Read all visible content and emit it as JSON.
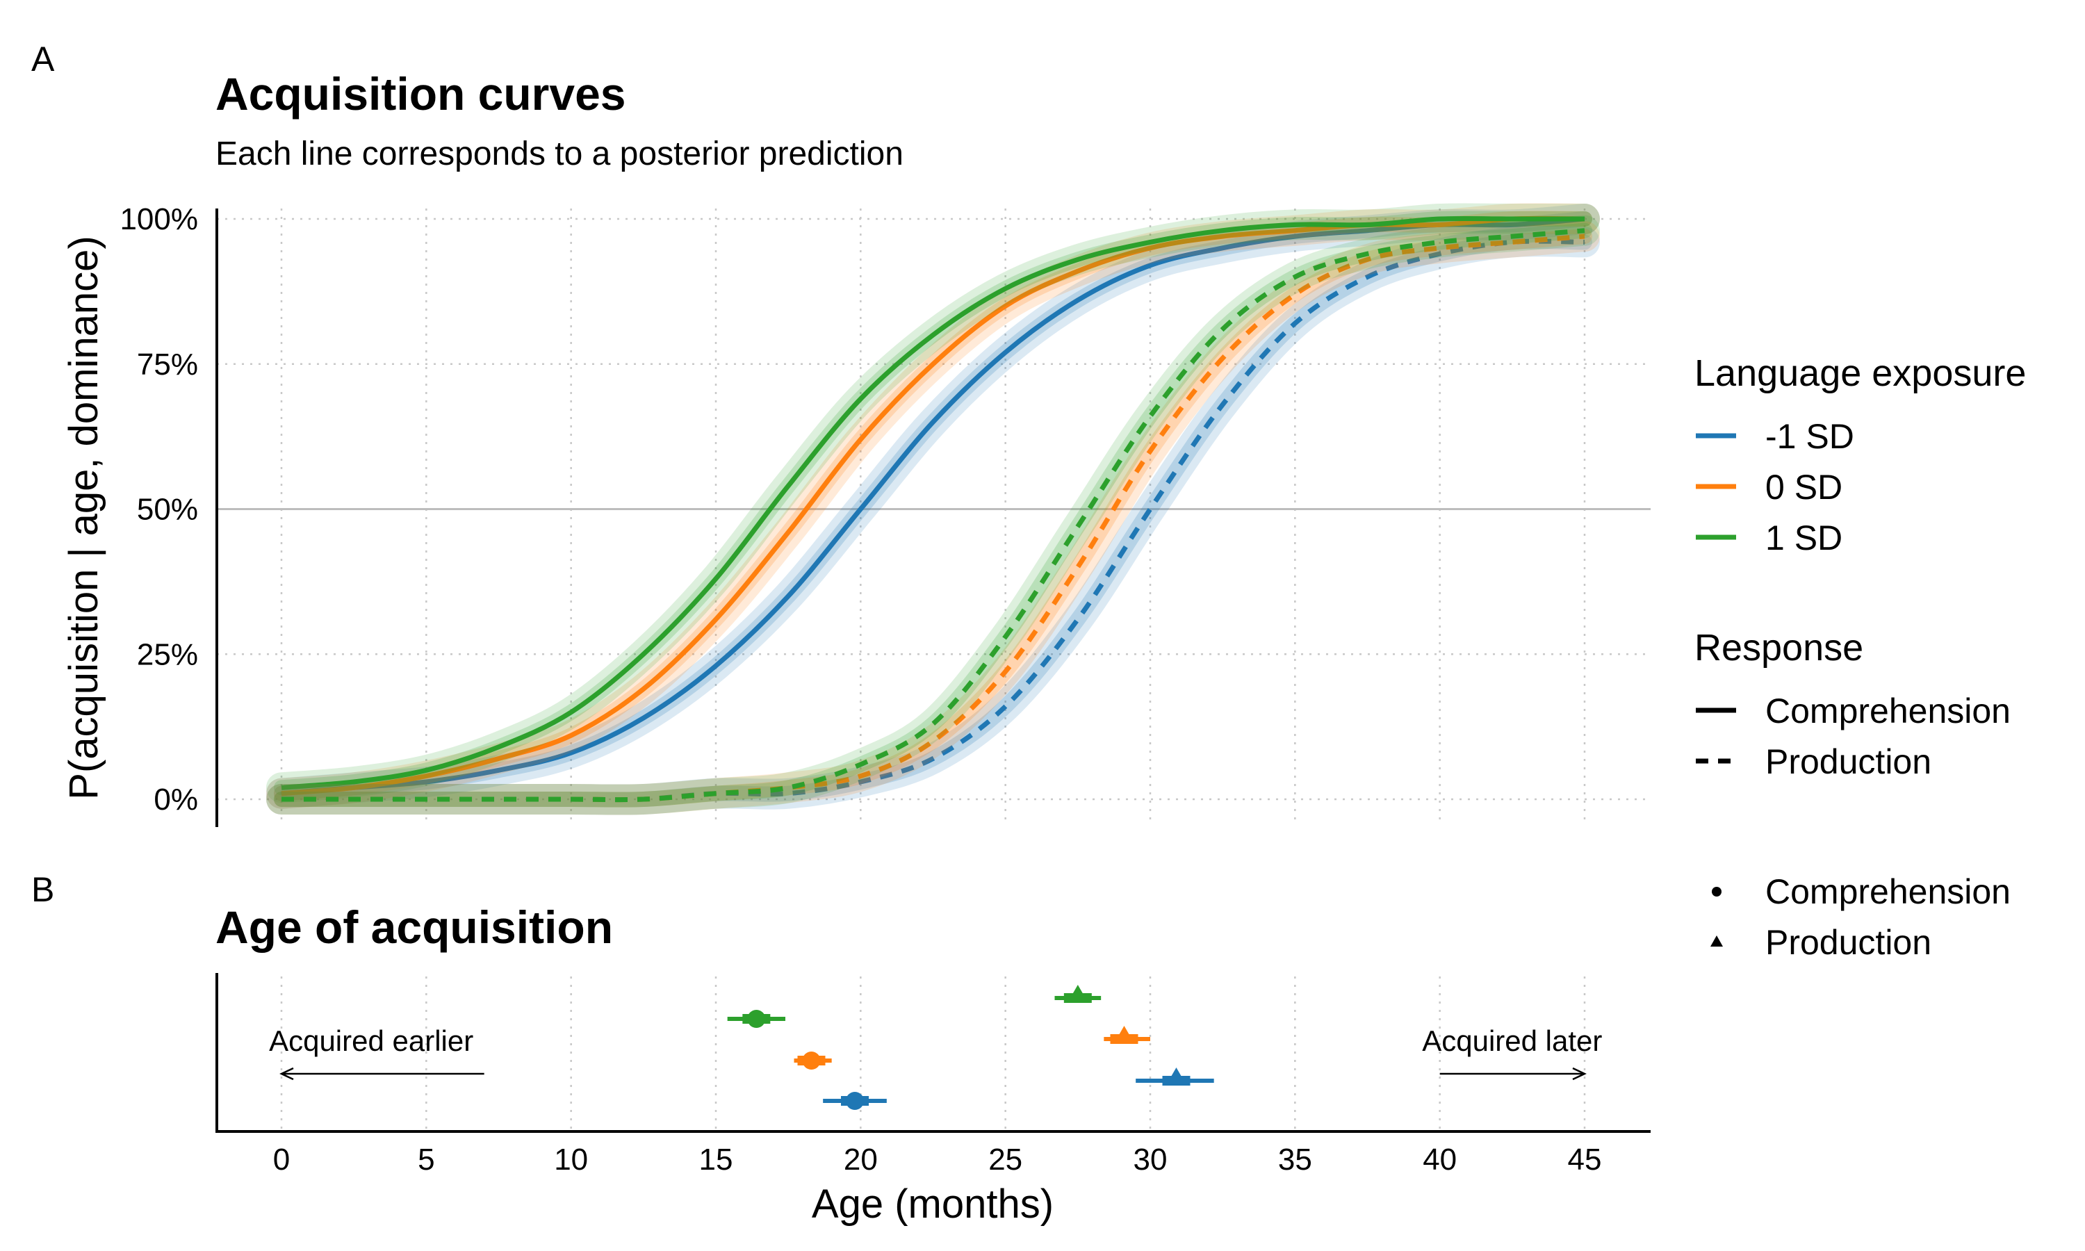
{
  "panels": {
    "a": {
      "tag": "A",
      "title": "Acquisition curves",
      "subtitle": "Each line corresponds to a posterior prediction",
      "ylabel": "P(acquisition | age, dominance)",
      "y_ticks": [
        "0%",
        "25%",
        "50%",
        "75%",
        "100%"
      ]
    },
    "b": {
      "tag": "B",
      "title": "Age of acquisition",
      "annotation_left": "Acquired earlier",
      "annotation_right": "Acquired later"
    },
    "xlabel": "Age (months)",
    "x_ticks": [
      "0",
      "5",
      "10",
      "15",
      "20",
      "25",
      "30",
      "35",
      "40",
      "45"
    ]
  },
  "legend": {
    "exposure_title": "Language exposure",
    "exposure_items": [
      "-1 SD",
      "0 SD",
      "1 SD"
    ],
    "response_title": "Response",
    "response_items": [
      "Comprehension",
      "Production"
    ],
    "shape_items": [
      "Comprehension",
      "Production"
    ]
  },
  "colors": {
    "-1 SD": "#1f77b4",
    "0 SD": "#ff7f0e",
    "1 SD": "#2ca02c"
  },
  "chart_data": [
    {
      "type": "line",
      "panel": "A",
      "title": "Acquisition curves",
      "subtitle": "Each line corresponds to a posterior prediction",
      "xlabel": "",
      "ylabel": "P(acquisition | age, dominance)",
      "xlim": [
        0,
        45
      ],
      "ylim": [
        0,
        1
      ],
      "x_ticks": [
        0,
        5,
        10,
        15,
        20,
        25,
        30,
        35,
        40,
        45
      ],
      "y_ticks": [
        0,
        0.25,
        0.5,
        0.75,
        1
      ],
      "reference_line_y": 0.5,
      "grid": "dotted",
      "legend_position": "right",
      "x": [
        0,
        2.5,
        5,
        7.5,
        10,
        12.5,
        15,
        17.5,
        20,
        22.5,
        25,
        27.5,
        30,
        32.5,
        35,
        37.5,
        40,
        42.5,
        45
      ],
      "series": [
        {
          "name": "-1 SD",
          "response": "Comprehension",
          "linestyle": "solid",
          "values": [
            0.01,
            0.02,
            0.03,
            0.05,
            0.08,
            0.14,
            0.23,
            0.35,
            0.5,
            0.65,
            0.77,
            0.86,
            0.92,
            0.95,
            0.97,
            0.98,
            0.99,
            0.99,
            1.0
          ]
        },
        {
          "name": "0 SD",
          "response": "Comprehension",
          "linestyle": "solid",
          "values": [
            0.01,
            0.02,
            0.04,
            0.07,
            0.11,
            0.19,
            0.31,
            0.46,
            0.62,
            0.75,
            0.85,
            0.91,
            0.95,
            0.97,
            0.98,
            0.99,
            0.99,
            1.0,
            1.0
          ]
        },
        {
          "name": "1 SD",
          "response": "Comprehension",
          "linestyle": "solid",
          "values": [
            0.02,
            0.03,
            0.05,
            0.09,
            0.15,
            0.25,
            0.38,
            0.54,
            0.69,
            0.8,
            0.88,
            0.93,
            0.96,
            0.98,
            0.99,
            0.99,
            1.0,
            1.0,
            1.0
          ]
        },
        {
          "name": "-1 SD",
          "response": "Production",
          "linestyle": "dashed",
          "values": [
            0.0,
            0.0,
            0.0,
            0.0,
            0.0,
            0.0,
            0.01,
            0.01,
            0.03,
            0.07,
            0.16,
            0.31,
            0.5,
            0.68,
            0.82,
            0.9,
            0.94,
            0.96,
            0.96
          ]
        },
        {
          "name": "0 SD",
          "response": "Production",
          "linestyle": "dashed",
          "values": [
            0.0,
            0.0,
            0.0,
            0.0,
            0.0,
            0.0,
            0.01,
            0.02,
            0.04,
            0.1,
            0.22,
            0.4,
            0.6,
            0.76,
            0.87,
            0.93,
            0.95,
            0.96,
            0.97
          ]
        },
        {
          "name": "1 SD",
          "response": "Production",
          "linestyle": "dashed",
          "values": [
            0.0,
            0.0,
            0.0,
            0.0,
            0.0,
            0.0,
            0.01,
            0.02,
            0.06,
            0.13,
            0.28,
            0.47,
            0.66,
            0.81,
            0.9,
            0.94,
            0.96,
            0.97,
            0.98
          ]
        }
      ]
    },
    {
      "type": "scatter",
      "panel": "B",
      "title": "Age of acquisition",
      "xlabel": "Age (months)",
      "xlim": [
        0,
        45
      ],
      "x_ticks": [
        0,
        5,
        10,
        15,
        20,
        25,
        30,
        35,
        40,
        45
      ],
      "grid": "dotted",
      "points": [
        {
          "group": "1 SD",
          "response": "Comprehension",
          "shape": "circle",
          "estimate": 16.4,
          "interval": [
            15.4,
            17.4
          ]
        },
        {
          "group": "0 SD",
          "response": "Comprehension",
          "shape": "circle",
          "estimate": 18.3,
          "interval": [
            17.7,
            19.0
          ]
        },
        {
          "group": "-1 SD",
          "response": "Comprehension",
          "shape": "circle",
          "estimate": 19.8,
          "interval": [
            18.7,
            20.9
          ]
        },
        {
          "group": "1 SD",
          "response": "Production",
          "shape": "triangle",
          "estimate": 27.5,
          "interval": [
            26.7,
            28.3
          ]
        },
        {
          "group": "0 SD",
          "response": "Production",
          "shape": "triangle",
          "estimate": 29.1,
          "interval": [
            28.4,
            30.0
          ]
        },
        {
          "group": "-1 SD",
          "response": "Production",
          "shape": "triangle",
          "estimate": 30.9,
          "interval": [
            29.5,
            32.2
          ]
        }
      ]
    }
  ]
}
